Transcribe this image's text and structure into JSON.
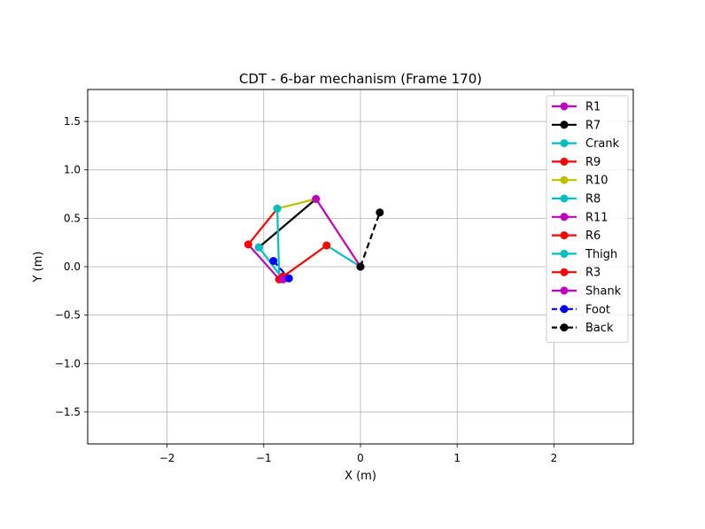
{
  "chart_data": {
    "type": "line",
    "title": "CDT - 6-bar mechanism (Frame 170)",
    "xlabel": "X (m)",
    "ylabel": "Y (m)",
    "xlim": [
      -2.82,
      2.82
    ],
    "ylim": [
      -1.83,
      1.83
    ],
    "xticks": [
      -2,
      -1,
      0,
      1,
      2
    ],
    "yticks": [
      -1.5,
      -1.0,
      -0.5,
      0.0,
      0.5,
      1.0,
      1.5
    ],
    "xtick_labels": [
      "−2",
      "−1",
      "0",
      "1",
      "2"
    ],
    "ytick_labels": [
      "−1.5",
      "−1.0",
      "−0.5",
      "0.0",
      "0.5",
      "1.0",
      "1.5"
    ],
    "grid": true,
    "legend_position": "upper-right",
    "series": [
      {
        "name": "R1",
        "color": "#bf00bf",
        "dashed": false,
        "x": [
          -1.16,
          -0.84
        ],
        "y": [
          0.23,
          -0.13
        ]
      },
      {
        "name": "R7",
        "color": "#000000",
        "dashed": false,
        "x": [
          -1.05,
          -0.46
        ],
        "y": [
          0.2,
          0.7
        ]
      },
      {
        "name": "Crank",
        "color": "#00bfbf",
        "dashed": false,
        "x": [
          0.0,
          -0.35
        ],
        "y": [
          0.0,
          0.22
        ]
      },
      {
        "name": "R9",
        "color": "#ff0000",
        "dashed": false,
        "x": [
          -1.16,
          -0.86
        ],
        "y": [
          0.23,
          0.6
        ]
      },
      {
        "name": "R10",
        "color": "#bfbf00",
        "dashed": false,
        "x": [
          -0.86,
          -0.46
        ],
        "y": [
          0.6,
          0.7
        ]
      },
      {
        "name": "R8",
        "color": "#00bfbf",
        "dashed": false,
        "x": [
          -0.86,
          -0.84
        ],
        "y": [
          0.6,
          -0.13
        ]
      },
      {
        "name": "R11",
        "color": "#bf00bf",
        "dashed": false,
        "x": [
          -0.46,
          0.0
        ],
        "y": [
          0.7,
          0.0
        ]
      },
      {
        "name": "R6",
        "color": "#ff0000",
        "dashed": false,
        "x": [
          -0.84,
          -0.35
        ],
        "y": [
          -0.13,
          0.22
        ]
      },
      {
        "name": "Thigh",
        "color": "#00bfbf",
        "dashed": false,
        "x": [
          -1.05,
          -0.8
        ],
        "y": [
          0.2,
          -0.13
        ]
      },
      {
        "name": "R3",
        "color": "#ff0000",
        "dashed": false,
        "x": [
          -0.84,
          -0.8
        ],
        "y": [
          -0.13,
          -0.1
        ]
      },
      {
        "name": "Shank",
        "color": "#bf00bf",
        "dashed": false,
        "x": [
          -0.8,
          -0.74
        ],
        "y": [
          -0.13,
          -0.12
        ]
      },
      {
        "name": "Foot",
        "color": "#0000ff",
        "dashed": true,
        "x": [
          -0.9,
          -0.74
        ],
        "y": [
          0.06,
          -0.12
        ]
      },
      {
        "name": "Back",
        "color": "#000000",
        "dashed": true,
        "x": [
          0.0,
          0.2
        ],
        "y": [
          0.0,
          0.56
        ]
      }
    ]
  }
}
